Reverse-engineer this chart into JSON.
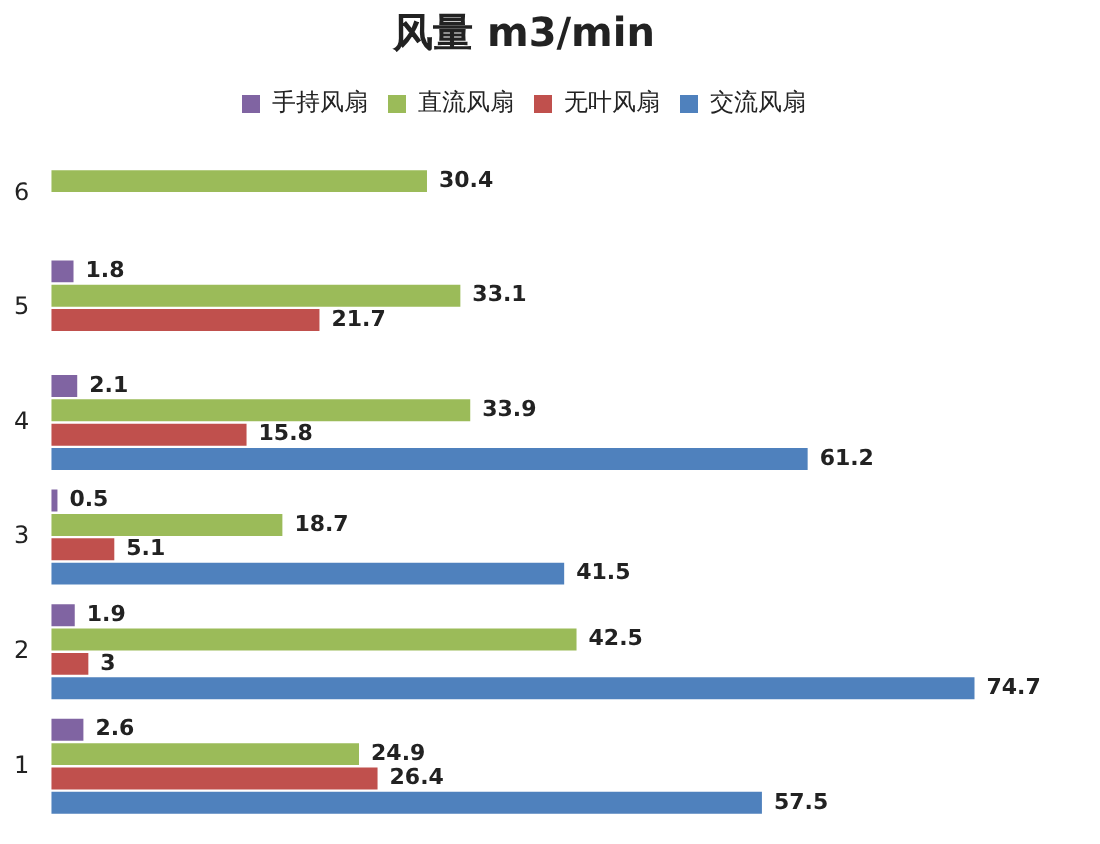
{
  "chart_data": {
    "type": "bar",
    "orientation": "horizontal",
    "title": "风量 m3/min",
    "categories": [
      "6",
      "5",
      "4",
      "3",
      "2",
      "1"
    ],
    "series": [
      {
        "name": "手持风扇",
        "color": "#8064a2",
        "values": [
          null,
          1.8,
          2.1,
          0.5,
          1.9,
          2.6
        ]
      },
      {
        "name": "直流风扇",
        "color": "#9bbb59",
        "values": [
          30.4,
          33.1,
          33.9,
          18.7,
          42.5,
          24.9
        ]
      },
      {
        "name": "无叶风扇",
        "color": "#c0504d",
        "values": [
          null,
          21.7,
          15.8,
          5.1,
          3,
          26.4
        ]
      },
      {
        "name": "交流风扇",
        "color": "#4f81bd",
        "values": [
          null,
          null,
          61.2,
          41.5,
          74.7,
          57.5
        ]
      }
    ],
    "data_labels": true,
    "legend": "top",
    "grid": false,
    "tick_labels": "y"
  }
}
